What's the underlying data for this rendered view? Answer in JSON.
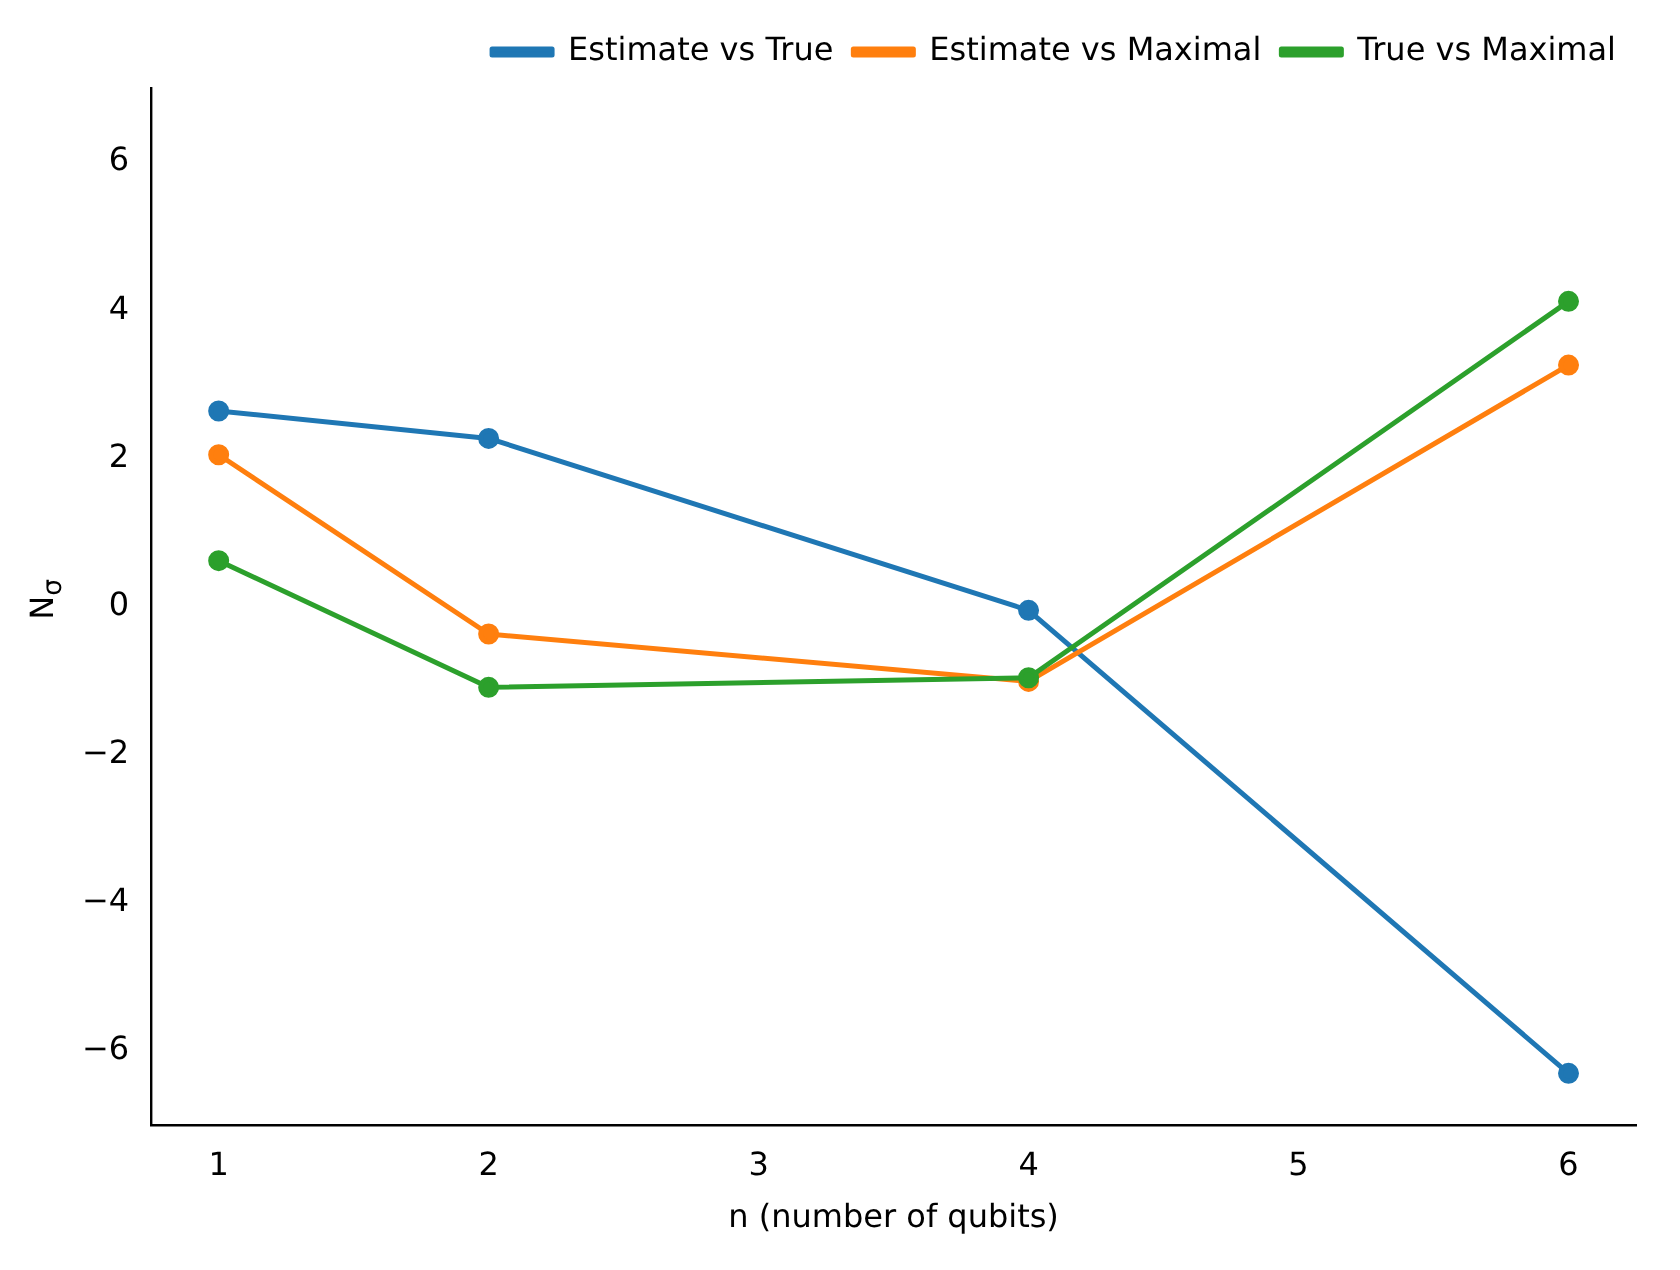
{
  "chart_data": {
    "type": "line",
    "xlabel": "n (number of qubits)",
    "ylabel": "N$_{σ}$",
    "x": [
      1,
      2,
      4,
      6
    ],
    "series": [
      {
        "name": "Estimate vs True",
        "color": "#1f77b4",
        "values": [
          2.64,
          2.27,
          -0.05,
          -6.3
        ]
      },
      {
        "name": "Estimate vs Maximal",
        "color": "#ff7f0e",
        "values": [
          2.05,
          -0.37,
          -1.01,
          3.26
        ]
      },
      {
        "name": "True vs Maximal",
        "color": "#2ca02c",
        "values": [
          0.62,
          -1.09,
          -0.96,
          4.12
        ]
      }
    ],
    "xlim": [
      0.75,
      6.25
    ],
    "xticks": [
      1,
      2,
      3,
      4,
      5,
      6
    ],
    "ylim": [
      -7,
      7
    ],
    "yticks": [
      -6,
      -4,
      -2,
      0,
      2,
      4,
      6
    ],
    "grid": false,
    "legend": "top right",
    "marker": "circle",
    "line_style": "solid"
  }
}
